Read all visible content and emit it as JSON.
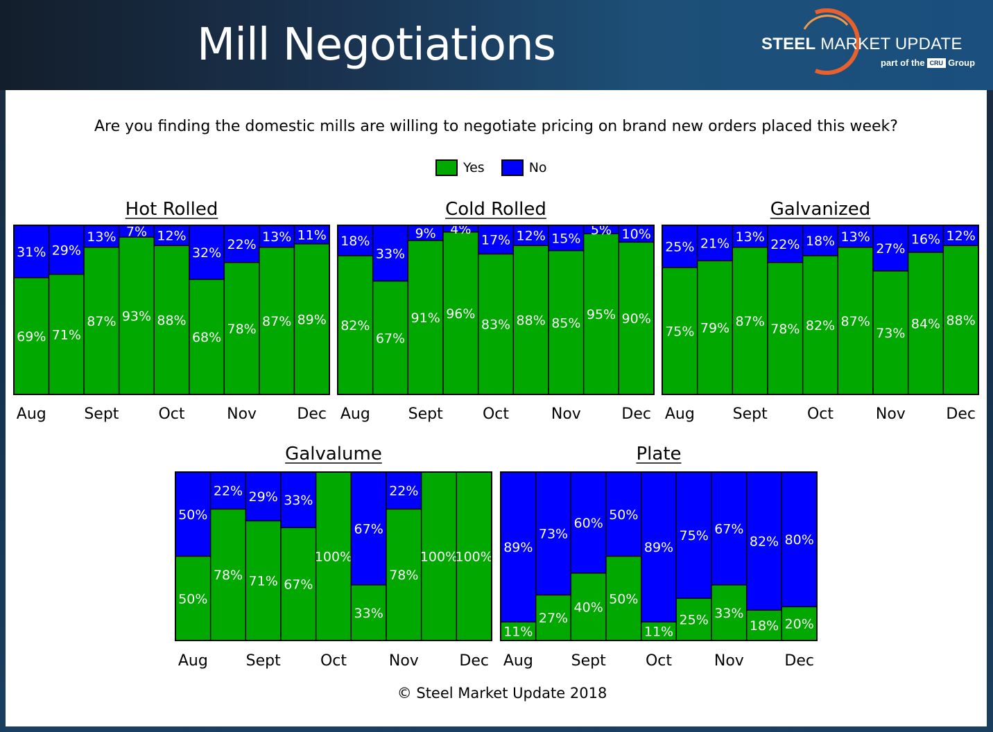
{
  "page": {
    "title": "Mill Negotiations",
    "logo_name_bold": "STEEL",
    "logo_name_rest": "MARKET UPDATE",
    "logo_sub_prefix": "part of the",
    "logo_cru": "CRU",
    "logo_sub_suffix": "Group",
    "question": "Are you finding the domestic mills are willing to negotiate pricing on brand new orders placed this week?",
    "footer": "© Steel Market Update 2018"
  },
  "legend": [
    {
      "label": "Yes",
      "color": "#00a800"
    },
    {
      "label": "No",
      "color": "#0000ff"
    }
  ],
  "colors": {
    "yes": "#00a800",
    "no": "#0000ff",
    "border": "#000000",
    "brand_orange": "#e8612c"
  },
  "chart_data": [
    {
      "type": "bar",
      "stacked": true,
      "title": "Hot Rolled",
      "tick_labels": [
        "Aug",
        "Sept",
        "Oct",
        "Nov",
        "Dec"
      ],
      "tick_positions": [
        0,
        2,
        4,
        6,
        8
      ],
      "ylim": [
        0,
        100
      ],
      "series": [
        {
          "name": "Yes",
          "values": [
            69,
            71,
            87,
            93,
            88,
            68,
            78,
            87,
            89
          ]
        },
        {
          "name": "No",
          "values": [
            31,
            29,
            13,
            7,
            12,
            32,
            22,
            13,
            11
          ]
        }
      ]
    },
    {
      "type": "bar",
      "stacked": true,
      "title": "Cold Rolled",
      "tick_labels": [
        "Aug",
        "Sept",
        "Oct",
        "Nov",
        "Dec"
      ],
      "tick_positions": [
        0,
        2,
        4,
        6,
        8
      ],
      "ylim": [
        0,
        100
      ],
      "series": [
        {
          "name": "Yes",
          "values": [
            82,
            67,
            91,
            96,
            83,
            88,
            85,
            95,
            90
          ]
        },
        {
          "name": "No",
          "values": [
            18,
            33,
            9,
            4,
            17,
            12,
            15,
            5,
            10
          ]
        }
      ]
    },
    {
      "type": "bar",
      "stacked": true,
      "title": "Galvanized",
      "tick_labels": [
        "Aug",
        "Sept",
        "Oct",
        "Nov",
        "Dec"
      ],
      "tick_positions": [
        0,
        2,
        4,
        6,
        8
      ],
      "ylim": [
        0,
        100
      ],
      "series": [
        {
          "name": "Yes",
          "values": [
            75,
            79,
            87,
            78,
            82,
            87,
            73,
            84,
            88
          ]
        },
        {
          "name": "No",
          "values": [
            25,
            21,
            13,
            22,
            18,
            13,
            27,
            16,
            12
          ]
        }
      ]
    },
    {
      "type": "bar",
      "stacked": true,
      "title": "Galvalume",
      "tick_labels": [
        "Aug",
        "Sept",
        "Oct",
        "Nov",
        "Dec"
      ],
      "tick_positions": [
        0,
        2,
        4,
        6,
        8
      ],
      "ylim": [
        0,
        100
      ],
      "series": [
        {
          "name": "Yes",
          "values": [
            50,
            78,
            71,
            67,
            100,
            33,
            78,
            100,
            100
          ]
        },
        {
          "name": "No",
          "values": [
            50,
            22,
            29,
            33,
            0,
            67,
            22,
            0,
            0
          ]
        }
      ]
    },
    {
      "type": "bar",
      "stacked": true,
      "title": "Plate",
      "tick_labels": [
        "Aug",
        "Sept",
        "Oct",
        "Nov",
        "Dec"
      ],
      "tick_positions": [
        0,
        2,
        4,
        6,
        8
      ],
      "ylim": [
        0,
        100
      ],
      "series": [
        {
          "name": "Yes",
          "values": [
            11,
            27,
            40,
            50,
            11,
            25,
            33,
            18,
            20
          ]
        },
        {
          "name": "No",
          "values": [
            89,
            73,
            60,
            50,
            89,
            75,
            67,
            82,
            80
          ]
        }
      ]
    }
  ]
}
